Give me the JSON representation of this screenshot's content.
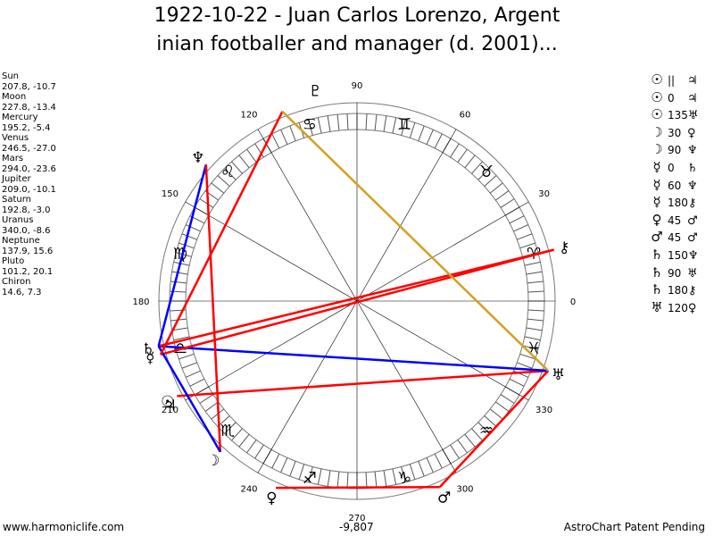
{
  "title": {
    "line1": "1922-10-22 - Juan Carlos Lorenzo, Argent",
    "line2": "inian footballer and manager (d. 2001)..."
  },
  "planets": [
    {
      "name": "Sun",
      "values": "207.8, -10.7",
      "lon": 207.8,
      "glyph": "☉"
    },
    {
      "name": "Moon",
      "values": "227.8, -13.4",
      "lon": 227.8,
      "glyph": "☽"
    },
    {
      "name": "Mercury",
      "values": "195.2, -5.4",
      "lon": 195.2,
      "glyph": "☿"
    },
    {
      "name": "Venus",
      "values": "246.5, -27.0",
      "lon": 246.5,
      "glyph": "♀"
    },
    {
      "name": "Mars",
      "values": "294.0, -23.6",
      "lon": 294.0,
      "glyph": "♂"
    },
    {
      "name": "Jupiter",
      "values": "209.0, -10.1",
      "lon": 209.0,
      "glyph": "♃"
    },
    {
      "name": "Saturn",
      "values": "192.8, -3.0",
      "lon": 192.8,
      "glyph": "♄"
    },
    {
      "name": "Uranus",
      "values": "340.0, -8.6",
      "lon": 340.0,
      "glyph": "♅"
    },
    {
      "name": "Neptune",
      "values": "137.9, 15.6",
      "lon": 137.9,
      "glyph": "♆"
    },
    {
      "name": "Pluto",
      "values": "101.2, 20.1",
      "lon": 101.2,
      "glyph": "♇"
    },
    {
      "name": "Chiron",
      "values": "14.6, 7.3",
      "lon": 14.6,
      "glyph": "⚷"
    }
  ],
  "aspects": [
    {
      "a": "☉",
      "angle": "||",
      "b": "♃"
    },
    {
      "a": "☉",
      "angle": "0",
      "b": "♃"
    },
    {
      "a": "☉",
      "angle": "135",
      "b": "♅"
    },
    {
      "a": "☽",
      "angle": "30",
      "b": "♀"
    },
    {
      "a": "☽",
      "angle": "90",
      "b": "♆"
    },
    {
      "a": "☿",
      "angle": "0",
      "b": "♄"
    },
    {
      "a": "☿",
      "angle": "60",
      "b": "♆"
    },
    {
      "a": "☿",
      "angle": "180",
      "b": "⚷"
    },
    {
      "a": "♀",
      "angle": "45",
      "b": "♂"
    },
    {
      "a": "♂",
      "angle": "45",
      "b": "♂"
    },
    {
      "a": "♄",
      "angle": "150",
      "b": "♆"
    },
    {
      "a": "♄",
      "angle": "90",
      "b": "♅"
    },
    {
      "a": "♄",
      "angle": "180",
      "b": "⚷"
    },
    {
      "a": "♅",
      "angle": "120",
      "b": "♀"
    }
  ],
  "chart_lines": [
    {
      "from": 246.5,
      "to": 294.0,
      "color": "#ff0000"
    },
    {
      "from": 294.0,
      "to": 340.0,
      "color": "#ff0000"
    },
    {
      "from": 340.0,
      "to": 207.8,
      "color": "#ff0000"
    },
    {
      "from": 340.0,
      "to": 192.8,
      "color": "#0000ff"
    },
    {
      "from": 14.6,
      "to": 195.2,
      "color": "#ff0000"
    },
    {
      "from": 14.6,
      "to": 192.8,
      "color": "#ff0000"
    },
    {
      "from": 137.9,
      "to": 192.8,
      "color": "#0000ff"
    },
    {
      "from": 137.9,
      "to": 227.8,
      "color": "#ff0000"
    },
    {
      "from": 227.8,
      "to": 192.8,
      "color": "#0000ff"
    },
    {
      "from": 111.5,
      "to": 195.2,
      "color": "#ff0000"
    },
    {
      "from": 111.5,
      "to": 340.0,
      "color": "#d4a020"
    }
  ],
  "zodiac_signs": [
    "♈",
    "♉",
    "♊",
    "♋",
    "♌",
    "♍",
    "♎",
    "♏",
    "♐",
    "♑",
    "♒",
    "♓"
  ],
  "degree_labels": [
    "0",
    "30",
    "60",
    "90",
    "120",
    "150",
    "180",
    "210",
    "240",
    "270",
    "300",
    "330"
  ],
  "footer": {
    "left": "www.harmoniclife.com",
    "center": "-9,807",
    "right": "AstroChart Patent Pending"
  }
}
